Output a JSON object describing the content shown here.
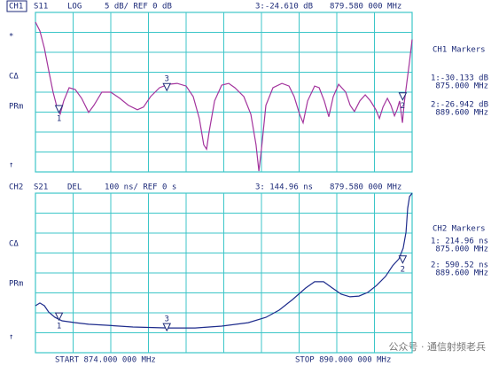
{
  "chart_data": [
    {
      "type": "line",
      "channel": "CH1",
      "parameter": "S11",
      "format": "LOG",
      "scale": "5 dB/ REF 0 dB",
      "marker_readout": "3:-24.610 dB",
      "marker_freq": "879.580 000 MHz",
      "side_labels": [
        "*",
        "CΔ",
        "PRm",
        "↑"
      ],
      "markers_title": "CH1 Markers",
      "marker_list": [
        {
          "label": "1:-30.133 dB",
          "freq": "875.000 MHz"
        },
        {
          "label": "2:-26.942 dB",
          "freq": "889.600 MHz"
        }
      ],
      "xlim": [
        874,
        890
      ],
      "ylim": [
        -45,
        -5
      ],
      "x": [
        874.0,
        874.19,
        874.38,
        874.56,
        874.75,
        874.94,
        875.05,
        875.2,
        875.43,
        875.69,
        875.96,
        876.26,
        876.48,
        876.82,
        877.2,
        877.58,
        877.95,
        878.33,
        878.59,
        878.89,
        879.27,
        879.65,
        880.02,
        880.4,
        880.7,
        880.96,
        881.15,
        881.27,
        881.38,
        881.61,
        881.91,
        882.21,
        882.47,
        882.85,
        883.15,
        883.37,
        883.49,
        883.6,
        883.79,
        884.09,
        884.47,
        884.77,
        884.99,
        885.22,
        885.37,
        885.56,
        885.86,
        886.05,
        886.27,
        886.46,
        886.65,
        886.88,
        887.18,
        887.37,
        887.55,
        887.78,
        888.01,
        888.23,
        888.46,
        888.61,
        888.76,
        888.95,
        889.1,
        889.25,
        889.36,
        889.47,
        889.59,
        889.66,
        889.77,
        889.89,
        890.0
      ],
      "series": [
        {
          "color": "#a3349d",
          "values": [
            -7.42,
            -9.62,
            -14.01,
            -19.51,
            -25.0,
            -29.4,
            -30.5,
            -27.2,
            -23.9,
            -24.34,
            -26.54,
            -30.06,
            -28.3,
            -25.0,
            -25.0,
            -26.54,
            -28.3,
            -29.4,
            -28.74,
            -26.1,
            -23.9,
            -23.02,
            -22.8,
            -23.46,
            -26.1,
            -31.6,
            -38.19,
            -39.29,
            -34.89,
            -27.2,
            -23.24,
            -22.8,
            -23.9,
            -26.1,
            -30.5,
            -38.19,
            -44.78,
            -39.29,
            -28.3,
            -23.9,
            -22.8,
            -23.46,
            -26.1,
            -30.5,
            -32.69,
            -27.2,
            -23.46,
            -23.9,
            -27.2,
            -31.16,
            -26.1,
            -23.02,
            -25.0,
            -28.3,
            -29.84,
            -27.2,
            -25.66,
            -27.2,
            -29.4,
            -31.6,
            -28.74,
            -26.54,
            -28.3,
            -30.94,
            -29.4,
            -27.2,
            -32.69,
            -27.86,
            -22.8,
            -17.31,
            -11.81
          ]
        }
      ],
      "markers": [
        {
          "label": "1",
          "x": 875,
          "y": -30.133
        },
        {
          "label": "2",
          "x": 889.6,
          "y": -26.942
        },
        {
          "label": "3",
          "x": 879.58,
          "y": -24.61
        }
      ]
    },
    {
      "type": "line",
      "channel": "CH2",
      "parameter": "S21",
      "format": "DEL",
      "scale": "100 ns/ REF 0 s",
      "marker_readout": "3: 144.96 ns",
      "marker_freq": "879.580 000 MHz",
      "side_labels": [
        "CΔ",
        "PRm",
        "↑"
      ],
      "markers_title": "CH2 Markers",
      "marker_list": [
        {
          "label": "1: 214.96 ns",
          "freq": "875.000 MHz"
        },
        {
          "label": "2: 590.52 ns",
          "freq": "889.600 MHz"
        }
      ],
      "xlim": [
        874,
        890
      ],
      "ylim": [
        0,
        1050
      ],
      "x": [
        874.0,
        874.19,
        874.38,
        874.56,
        874.83,
        875.13,
        875.69,
        876.26,
        877.01,
        878.14,
        879.65,
        880.78,
        881.91,
        883.04,
        883.79,
        884.35,
        884.92,
        885.48,
        885.86,
        886.24,
        886.61,
        886.99,
        887.36,
        887.74,
        888.12,
        888.49,
        888.87,
        889.17,
        889.44,
        889.62,
        889.74,
        889.81,
        889.89,
        890.0
      ],
      "series": [
        {
          "color": "#1e2c8c",
          "values": [
            309,
            327,
            309,
            268,
            233,
            210,
            198,
            187,
            181,
            169,
            163,
            163,
            175,
            198,
            233,
            280,
            350,
            426,
            467,
            467,
            426,
            385,
            368,
            373,
            397,
            443,
            502,
            572,
            618,
            688,
            793,
            951,
            1027,
            1050
          ]
        }
      ],
      "markers": [
        {
          "label": "1",
          "x": 875,
          "y": 214.96
        },
        {
          "label": "2",
          "x": 889.6,
          "y": 590.52
        },
        {
          "label": "3",
          "x": 879.58,
          "y": 144.96
        }
      ]
    }
  ],
  "footer": {
    "start": "START 874.000 000 MHz",
    "stop": "STOP 890.000 000 MHz"
  },
  "watermark": "公众号 · 通信射频老兵"
}
